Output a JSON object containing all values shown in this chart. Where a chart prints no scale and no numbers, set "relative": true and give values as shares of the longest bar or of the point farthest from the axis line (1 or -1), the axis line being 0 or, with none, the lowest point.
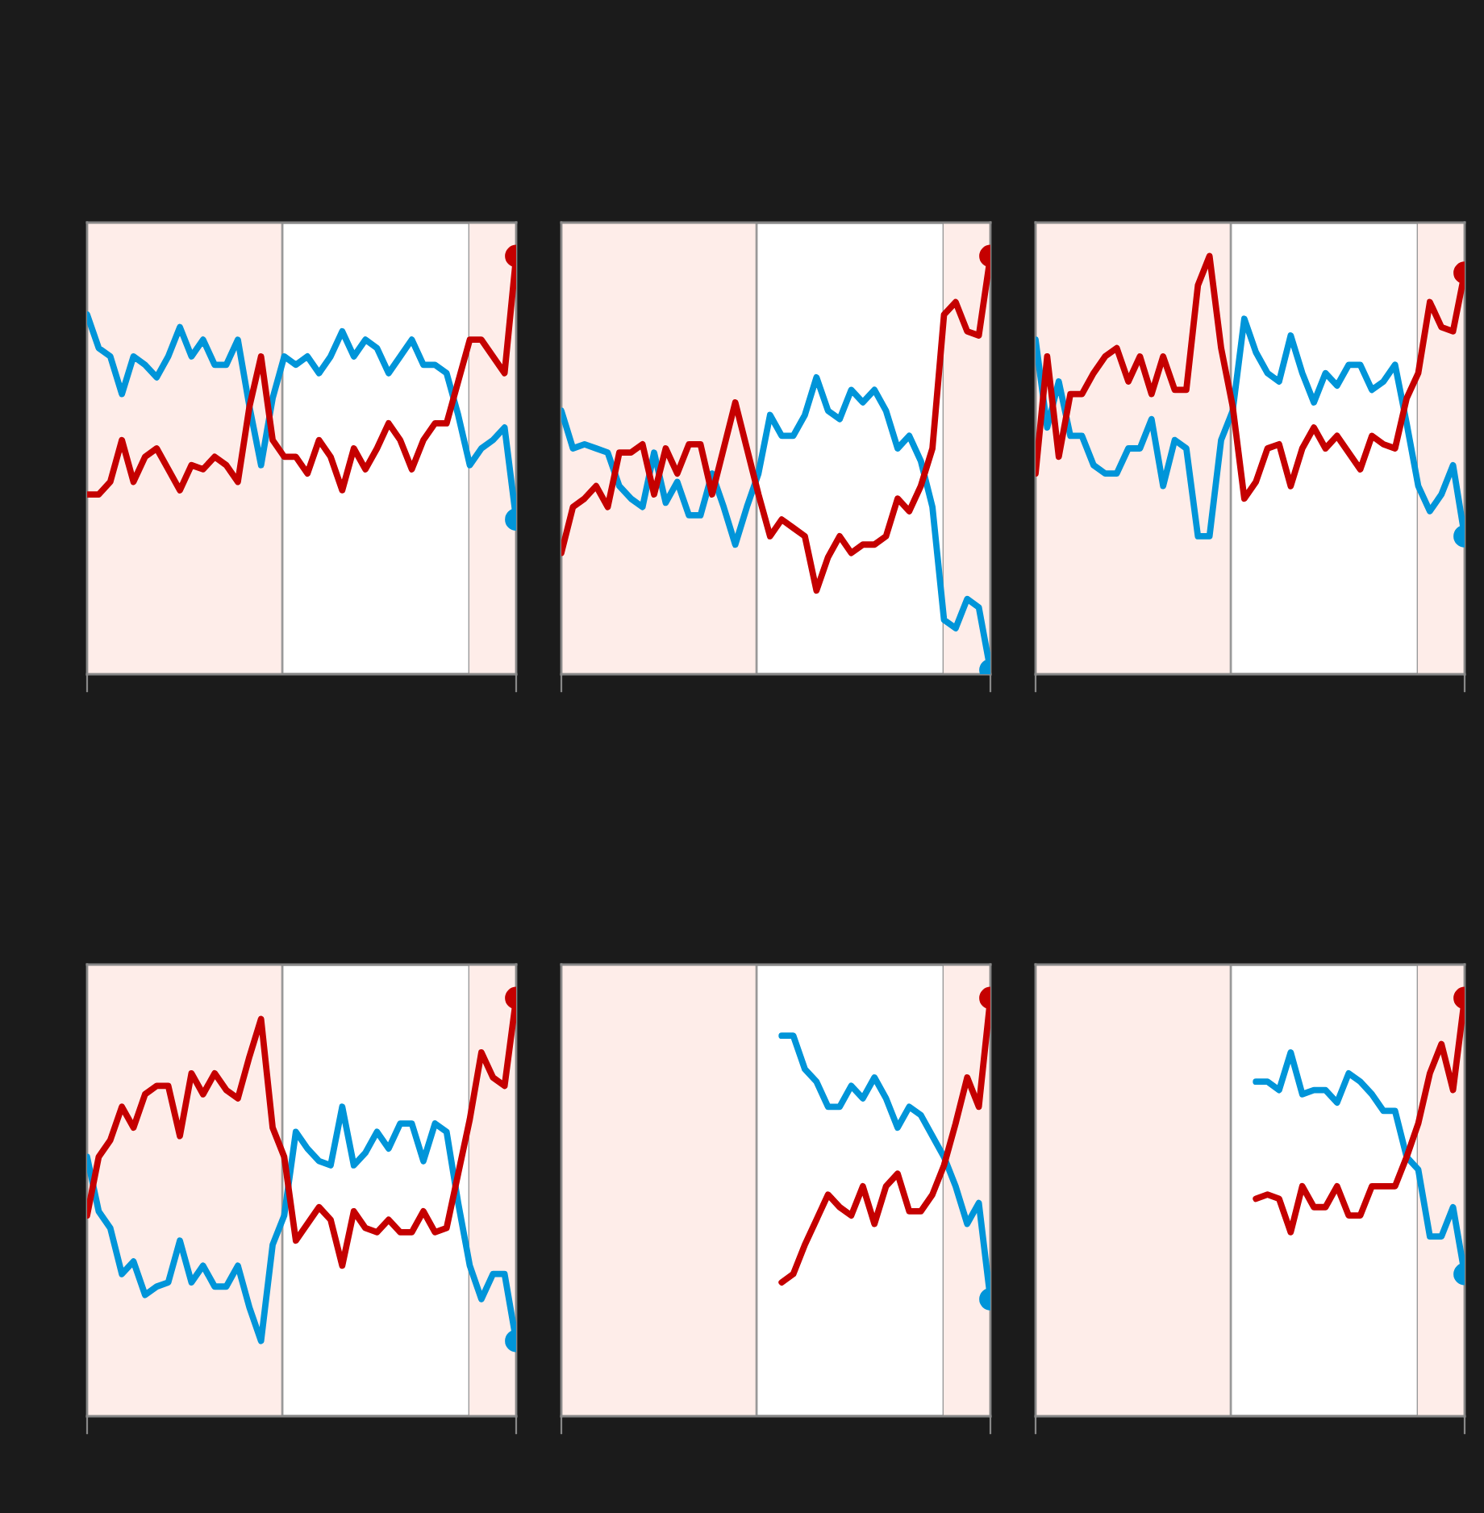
{
  "chart_data": [
    {
      "type": "line",
      "relative": true,
      "categories": [
        null,
        null,
        null,
        null,
        null,
        null,
        null,
        null,
        null,
        null,
        null,
        null,
        null,
        null,
        null,
        null,
        null,
        null,
        null,
        null,
        null,
        null,
        null,
        null,
        null,
        null,
        null,
        null,
        null,
        null,
        null,
        null,
        null,
        null,
        null,
        null,
        null,
        null
      ],
      "line_style": "solid",
      "series": [
        {
          "color": "#0095d9",
          "values": [
            0.86,
            0.78,
            0.76,
            0.67,
            0.76,
            0.74,
            0.71,
            0.76,
            0.83,
            0.76,
            0.8,
            0.74,
            0.74,
            0.8,
            0.64,
            0.5,
            0.66,
            0.76,
            0.74,
            0.76,
            0.72,
            0.76,
            0.82,
            0.76,
            0.8,
            0.78,
            0.72,
            0.76,
            0.8,
            0.74,
            0.74,
            0.72,
            0.62,
            0.5,
            0.54,
            0.56,
            0.59,
            0.37
          ]
        },
        {
          "color": "#c50000",
          "values": [
            0.43,
            0.43,
            0.46,
            0.56,
            0.46,
            0.52,
            0.54,
            0.49,
            0.44,
            0.5,
            0.49,
            0.52,
            0.5,
            0.46,
            0.64,
            0.76,
            0.56,
            0.52,
            0.52,
            0.48,
            0.56,
            0.52,
            0.44,
            0.54,
            0.49,
            0.54,
            0.6,
            0.56,
            0.49,
            0.56,
            0.6,
            0.6,
            0.7,
            0.8,
            0.8,
            0.76,
            0.72,
            1
          ]
        }
      ]
    },
    {
      "type": "line",
      "relative": true,
      "categories": [
        null,
        null,
        null,
        null,
        null,
        null,
        null,
        null,
        null,
        null,
        null,
        null,
        null,
        null,
        null,
        null,
        null,
        null,
        null,
        null,
        null,
        null,
        null,
        null,
        null,
        null,
        null,
        null,
        null,
        null,
        null,
        null,
        null,
        null,
        null,
        null,
        null,
        null
      ],
      "line_style": "solid",
      "series": [
        {
          "color": "#0095d9",
          "values": [
            0.63,
            0.54,
            0.55,
            0.54,
            0.53,
            0.45,
            0.42,
            0.4,
            0.53,
            0.41,
            0.46,
            0.38,
            0.38,
            0.48,
            0.4,
            0.31,
            0.4,
            0.48,
            0.62,
            0.57,
            0.57,
            0.62,
            0.71,
            0.63,
            0.61,
            0.68,
            0.65,
            0.68,
            0.63,
            0.54,
            0.57,
            0.51,
            0.4,
            0.13,
            0.11,
            0.18,
            0.16,
            0.01
          ]
        },
        {
          "color": "#c50000",
          "values": [
            0.29,
            0.4,
            0.42,
            0.45,
            0.4,
            0.53,
            0.53,
            0.55,
            0.43,
            0.54,
            0.48,
            0.55,
            0.55,
            0.43,
            0.54,
            0.65,
            0.54,
            0.43,
            0.33,
            0.37,
            0.35,
            0.33,
            0.2,
            0.28,
            0.33,
            0.29,
            0.31,
            0.31,
            0.33,
            0.42,
            0.39,
            0.45,
            0.54,
            0.86,
            0.89,
            0.82,
            0.81,
            1
          ]
        }
      ]
    },
    {
      "type": "line",
      "relative": true,
      "categories": [
        null,
        null,
        null,
        null,
        null,
        null,
        null,
        null,
        null,
        null,
        null,
        null,
        null,
        null,
        null,
        null,
        null,
        null,
        null,
        null,
        null,
        null,
        null,
        null,
        null,
        null,
        null,
        null,
        null,
        null,
        null,
        null,
        null,
        null,
        null,
        null,
        null,
        null
      ],
      "line_style": "solid",
      "series": [
        {
          "color": "#0095d9",
          "values": [
            0.8,
            0.59,
            0.7,
            0.57,
            0.57,
            0.5,
            0.48,
            0.48,
            0.54,
            0.54,
            0.61,
            0.45,
            0.56,
            0.54,
            0.33,
            0.33,
            0.56,
            0.63,
            0.85,
            0.77,
            0.72,
            0.7,
            0.81,
            0.72,
            0.65,
            0.72,
            0.69,
            0.74,
            0.74,
            0.68,
            0.7,
            0.74,
            0.6,
            0.45,
            0.39,
            0.43,
            0.5,
            0.33
          ]
        },
        {
          "color": "#c50000",
          "values": [
            0.48,
            0.76,
            0.52,
            0.67,
            0.67,
            0.72,
            0.76,
            0.78,
            0.7,
            0.76,
            0.67,
            0.76,
            0.68,
            0.68,
            0.93,
            1,
            0.78,
            0.64,
            0.42,
            0.46,
            0.54,
            0.55,
            0.45,
            0.54,
            0.59,
            0.54,
            0.57,
            0.53,
            0.49,
            0.57,
            0.55,
            0.54,
            0.66,
            0.72,
            0.89,
            0.83,
            0.82,
            0.96
          ]
        }
      ]
    },
    {
      "type": "line",
      "relative": true,
      "categories": [
        null,
        null,
        null,
        null,
        null,
        null,
        null,
        null,
        null,
        null,
        null,
        null,
        null,
        null,
        null,
        null,
        null,
        null,
        null,
        null,
        null,
        null,
        null,
        null,
        null,
        null,
        null,
        null,
        null,
        null,
        null,
        null,
        null,
        null,
        null,
        null,
        null,
        null
      ],
      "line_style": "solid",
      "series": [
        {
          "color": "#0095d9",
          "values": [
            0.62,
            0.49,
            0.45,
            0.34,
            0.37,
            0.29,
            0.31,
            0.32,
            0.42,
            0.32,
            0.36,
            0.31,
            0.31,
            0.36,
            0.26,
            0.18,
            0.41,
            0.48,
            0.68,
            0.64,
            0.61,
            0.6,
            0.74,
            0.6,
            0.63,
            0.68,
            0.64,
            0.7,
            0.7,
            0.61,
            0.7,
            0.68,
            0.51,
            0.36,
            0.28,
            0.34,
            0.34,
            0.18
          ]
        },
        {
          "color": "#c50000",
          "values": [
            0.48,
            0.62,
            0.66,
            0.74,
            0.69,
            0.77,
            0.79,
            0.79,
            0.67,
            0.82,
            0.77,
            0.82,
            0.78,
            0.76,
            0.86,
            0.95,
            0.69,
            0.62,
            0.42,
            0.46,
            0.5,
            0.47,
            0.36,
            0.49,
            0.45,
            0.44,
            0.47,
            0.44,
            0.44,
            0.49,
            0.44,
            0.45,
            0.58,
            0.71,
            0.87,
            0.81,
            0.79,
            1
          ]
        }
      ]
    },
    {
      "type": "line",
      "relative": true,
      "categories": [
        null,
        null,
        null,
        null,
        null,
        null,
        null,
        null,
        null,
        null,
        null,
        null,
        null,
        null,
        null,
        null,
        null,
        null,
        null,
        null,
        null,
        null,
        null,
        null,
        null,
        null,
        null,
        null,
        null,
        null,
        null,
        null,
        null,
        null,
        null,
        null,
        null,
        null
      ],
      "line_style": "solid",
      "series": [
        {
          "color": "#0095d9",
          "values": [
            null,
            null,
            null,
            null,
            null,
            null,
            null,
            null,
            null,
            null,
            null,
            null,
            null,
            null,
            null,
            null,
            null,
            null,
            null,
            0.91,
            0.91,
            0.83,
            0.8,
            0.74,
            0.74,
            0.79,
            0.76,
            0.81,
            0.76,
            0.69,
            0.74,
            0.72,
            0.67,
            0.62,
            0.55,
            0.46,
            0.51,
            0.28
          ]
        },
        {
          "color": "#c50000",
          "values": [
            null,
            null,
            null,
            null,
            null,
            null,
            null,
            null,
            null,
            null,
            null,
            null,
            null,
            null,
            null,
            null,
            null,
            null,
            null,
            0.32,
            0.34,
            0.41,
            0.47,
            0.53,
            0.5,
            0.48,
            0.55,
            0.46,
            0.55,
            0.58,
            0.49,
            0.49,
            0.53,
            0.6,
            0.7,
            0.81,
            0.74,
            1
          ]
        }
      ]
    },
    {
      "type": "line",
      "relative": true,
      "categories": [
        null,
        null,
        null,
        null,
        null,
        null,
        null,
        null,
        null,
        null,
        null,
        null,
        null,
        null,
        null,
        null,
        null,
        null,
        null,
        null,
        null,
        null,
        null,
        null,
        null,
        null,
        null,
        null,
        null,
        null,
        null,
        null,
        null,
        null,
        null,
        null,
        null,
        null
      ],
      "line_style": "solid",
      "series": [
        {
          "color": "#0095d9",
          "values": [
            null,
            null,
            null,
            null,
            null,
            null,
            null,
            null,
            null,
            null,
            null,
            null,
            null,
            null,
            null,
            null,
            null,
            null,
            null,
            0.8,
            0.8,
            0.78,
            0.87,
            0.77,
            0.78,
            0.78,
            0.75,
            0.82,
            0.8,
            0.77,
            0.73,
            0.73,
            0.62,
            0.59,
            0.43,
            0.43,
            0.5,
            0.34
          ]
        },
        {
          "color": "#c50000",
          "values": [
            null,
            null,
            null,
            null,
            null,
            null,
            null,
            null,
            null,
            null,
            null,
            null,
            null,
            null,
            null,
            null,
            null,
            null,
            null,
            0.52,
            0.53,
            0.52,
            0.44,
            0.55,
            0.5,
            0.5,
            0.55,
            0.48,
            0.48,
            0.55,
            0.55,
            0.55,
            0.62,
            0.7,
            0.82,
            0.89,
            0.78,
            1
          ]
        }
      ]
    }
  ]
}
